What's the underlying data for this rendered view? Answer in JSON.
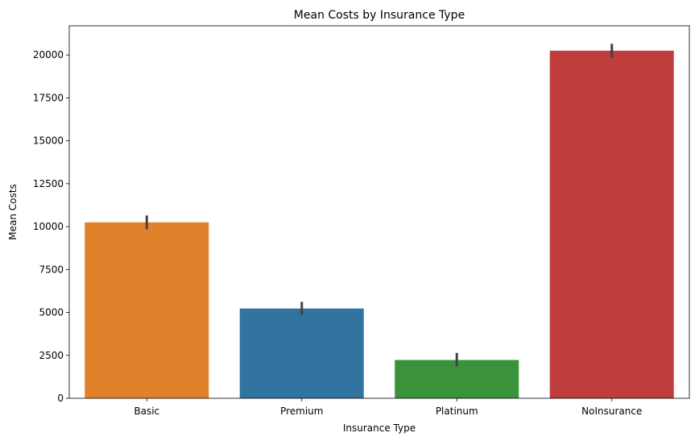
{
  "chart_data": {
    "type": "bar",
    "title": "Mean Costs by Insurance Type",
    "xlabel": "Insurance Type",
    "ylabel": "Mean Costs",
    "categories": [
      "Basic",
      "Premium",
      "Platinum",
      "NoInsurance"
    ],
    "values": [
      10250,
      5230,
      2230,
      20250
    ],
    "error_low": [
      9850,
      4850,
      1850,
      19850
    ],
    "error_high": [
      10650,
      5620,
      2640,
      20650
    ],
    "colors": [
      "#e1812c",
      "#3274a1",
      "#3a923a",
      "#c03d3e"
    ],
    "error_color": "#424242",
    "ylim": [
      0,
      21700
    ],
    "yticks": [
      0,
      2500,
      5000,
      7500,
      10000,
      12500,
      15000,
      17500,
      20000
    ],
    "grid": false,
    "legend": "none"
  }
}
